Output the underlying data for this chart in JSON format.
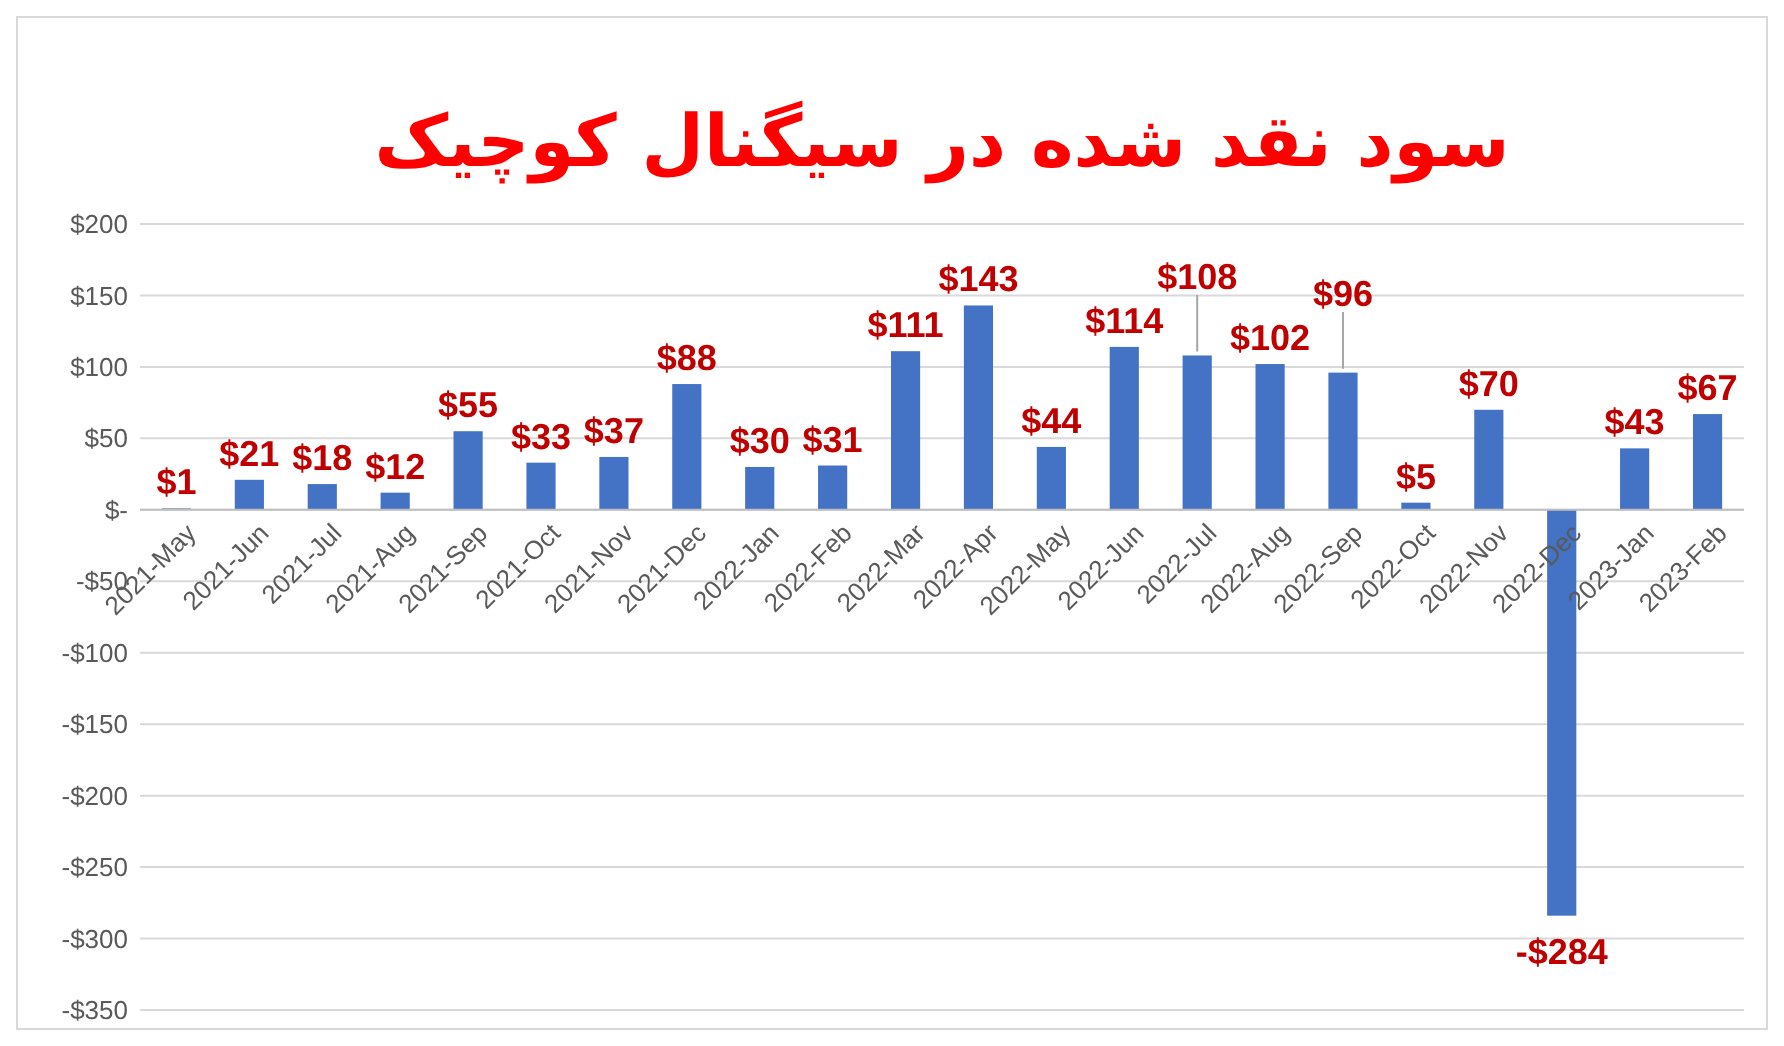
{
  "chart_data": {
    "type": "bar",
    "title": "سود نقد شده در سیگنال کوچیک",
    "categories": [
      "2021-May",
      "2021-Jun",
      "2021-Jul",
      "2021-Aug",
      "2021-Sep",
      "2021-Oct",
      "2021-Nov",
      "2021-Dec",
      "2022-Jan",
      "2022-Feb",
      "2022-Mar",
      "2022-Apr",
      "2022-May",
      "2022-Jun",
      "2022-Jul",
      "2022-Aug",
      "2022-Sep",
      "2022-Oct",
      "2022-Nov",
      "2022-Dec",
      "2023-Jan",
      "2023-Feb"
    ],
    "values": [
      1,
      21,
      18,
      12,
      55,
      33,
      37,
      88,
      30,
      31,
      111,
      143,
      44,
      114,
      108,
      102,
      96,
      5,
      70,
      -284,
      43,
      67
    ],
    "value_labels": [
      "$1",
      "$21",
      "$18",
      "$12",
      "$55",
      "$33",
      "$37",
      "$88",
      "$30",
      "$31",
      "$111",
      "$143",
      "$44",
      "$114",
      "$108",
      "$102",
      "$96",
      "$5",
      "$70",
      "-$284",
      "$43",
      "$67"
    ],
    "color": "#4472c4",
    "ylim": [
      -350,
      200
    ],
    "yticks": [
      {
        "value": -350,
        "label": "-$350"
      },
      {
        "value": -300,
        "label": "-$300"
      },
      {
        "value": -250,
        "label": "-$250"
      },
      {
        "value": -200,
        "label": "-$200"
      },
      {
        "value": -150,
        "label": "-$150"
      },
      {
        "value": -100,
        "label": "-$100"
      },
      {
        "value": -50,
        "label": "-$50"
      },
      {
        "value": 0,
        "label": "$-"
      },
      {
        "value": 50,
        "label": "$50"
      },
      {
        "value": 100,
        "label": "$100"
      },
      {
        "value": 150,
        "label": "$150"
      },
      {
        "value": 200,
        "label": "$200"
      }
    ],
    "grid": "y"
  }
}
